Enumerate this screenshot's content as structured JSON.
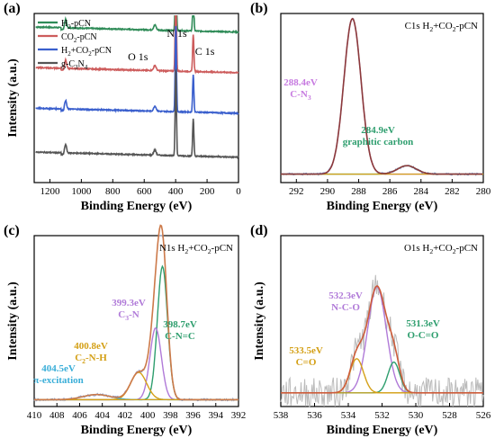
{
  "chart_data": [
    {
      "type": "line",
      "panel_label": "(a)",
      "xlabel": "Binding Energy (eV)",
      "ylabel": "Intensity (a.u.)",
      "xlim": [
        1300,
        0
      ],
      "xticks": [
        1200,
        1000,
        800,
        600,
        400,
        200,
        0
      ],
      "legend": {
        "placement": "top-left"
      },
      "peak_labels": [
        {
          "text": "O 1s",
          "x": 532
        },
        {
          "text": "N 1s",
          "x": 399
        },
        {
          "text": "C 1s",
          "x": 288
        }
      ],
      "series": [
        {
          "name": "H2-pCN",
          "name_sub": "H|2|-pCN",
          "color": "#2e8b57",
          "offset": 0.92
        },
        {
          "name": "CO2-pCN",
          "name_sub": "CO|2|-pCN",
          "color": "#cd5c5c",
          "offset": 0.68
        },
        {
          "name": "H2+CO2-pCN",
          "name_sub": "H|2|+CO|2|-pCN",
          "color": "#3a5fcd",
          "offset": 0.44
        },
        {
          "name": "g-C3N4",
          "name_sub": "g-C|3|N|4|",
          "color": "#555555",
          "offset": 0.18
        }
      ],
      "peaks": [
        {
          "x": 1100,
          "height": 0.05,
          "width": 6
        },
        {
          "x": 532,
          "height": 0.03,
          "width": 8
        },
        {
          "x": 399,
          "height": 0.52,
          "width": 4
        },
        {
          "x": 288,
          "height": 0.22,
          "width": 4
        }
      ]
    },
    {
      "type": "line",
      "panel_label": "(b)",
      "title": "C1s H2+CO2-pCN",
      "title_sub": "C1s H|2|+CO|2|-pCN",
      "xlabel": "Binding Energy (eV)",
      "ylabel": "",
      "xlim": [
        293,
        280
      ],
      "xticks": [
        292,
        290,
        288,
        286,
        284,
        282,
        280
      ],
      "annotations": [
        {
          "lines": [
            "288.4eV",
            "C-N3"
          ],
          "lines_sub": [
            "288.4eV",
            "C-N|3|"
          ],
          "color": "#c77be0"
        },
        {
          "lines": [
            "284.9eV",
            "graphitic carbon"
          ],
          "lines_sub": [
            "284.9eV",
            "graphitic carbon"
          ],
          "color": "#2e9e6e"
        }
      ],
      "components": [
        {
          "center": 288.4,
          "height": 0.92,
          "width": 0.55,
          "color": "#c77be0"
        },
        {
          "center": 284.9,
          "height": 0.05,
          "width": 0.6,
          "color": "#2e9e6e"
        }
      ],
      "baseline": 0.05,
      "fit_color": "#8b3a3a",
      "raw_color": "#8da2d0"
    },
    {
      "type": "line",
      "panel_label": "(c)",
      "title": "N1s H2+CO2-pCN",
      "title_sub": "N1s H|2|+CO|2|-pCN",
      "xlabel": "Binding Energy (eV)",
      "ylabel": "Intensity (a.u.)",
      "xlim": [
        410,
        392
      ],
      "xticks": [
        410,
        408,
        406,
        404,
        402,
        400,
        398,
        396,
        394,
        392
      ],
      "annotations": [
        {
          "lines": [
            "399.3eV",
            "C3-N"
          ],
          "lines_sub": [
            "399.3eV",
            "C|3|-N"
          ],
          "color": "#b07ad8"
        },
        {
          "lines": [
            "398.7eV",
            "C-N=C"
          ],
          "lines_sub": [
            "398.7eV",
            "C-N=C"
          ],
          "color": "#2e9e6e"
        },
        {
          "lines": [
            "400.8eV",
            "C2-N-H"
          ],
          "lines_sub": [
            "400.8eV",
            "C|2|-N-H"
          ],
          "color": "#d4a017"
        },
        {
          "lines": [
            "404.5eV",
            "π-excitation"
          ],
          "lines_sub": [
            "404.5eV",
            "π-excitation"
          ],
          "color": "#3aaed8"
        }
      ],
      "components": [
        {
          "center": 398.7,
          "height": 0.78,
          "width": 0.45,
          "color": "#2e9e6e"
        },
        {
          "center": 399.3,
          "height": 0.42,
          "width": 0.5,
          "color": "#b07ad8"
        },
        {
          "center": 400.8,
          "height": 0.16,
          "width": 0.7,
          "color": "#d4a017"
        },
        {
          "center": 404.5,
          "height": 0.03,
          "width": 1.2,
          "color": "#3aaed8"
        }
      ],
      "baseline": 0.04,
      "fit_color": "#cd7a4a",
      "raw_color": "#8da2d0"
    },
    {
      "type": "line",
      "panel_label": "(d)",
      "title": "O1s H2+CO2-pCN",
      "title_sub": "O1s H|2|+CO|2|-pCN",
      "xlabel": "Binding Energy (eV)",
      "ylabel": "Intensity (a.u.)",
      "xlim": [
        538,
        526
      ],
      "xticks": [
        538,
        536,
        534,
        532,
        530,
        528,
        526
      ],
      "annotations": [
        {
          "lines": [
            "532.3eV",
            "N-C-O"
          ],
          "lines_sub": [
            "532.3eV",
            "N-C-O"
          ],
          "color": "#b07ad8"
        },
        {
          "lines": [
            "531.3eV",
            "O-C=O"
          ],
          "lines_sub": [
            "531.3eV",
            "O-C=O"
          ],
          "color": "#2e9e6e"
        },
        {
          "lines": [
            "533.5eV",
            "C=O"
          ],
          "lines_sub": [
            "533.5eV",
            "C=O"
          ],
          "color": "#d4a017"
        }
      ],
      "components": [
        {
          "center": 532.3,
          "height": 0.62,
          "width": 0.55,
          "color": "#b07ad8"
        },
        {
          "center": 531.3,
          "height": 0.18,
          "width": 0.35,
          "color": "#2e9e6e"
        },
        {
          "center": 533.5,
          "height": 0.2,
          "width": 0.4,
          "color": "#d4a017"
        }
      ],
      "baseline": 0.08,
      "fit_color": "#cd5c3a",
      "raw_color": "#bbbbbb"
    }
  ]
}
